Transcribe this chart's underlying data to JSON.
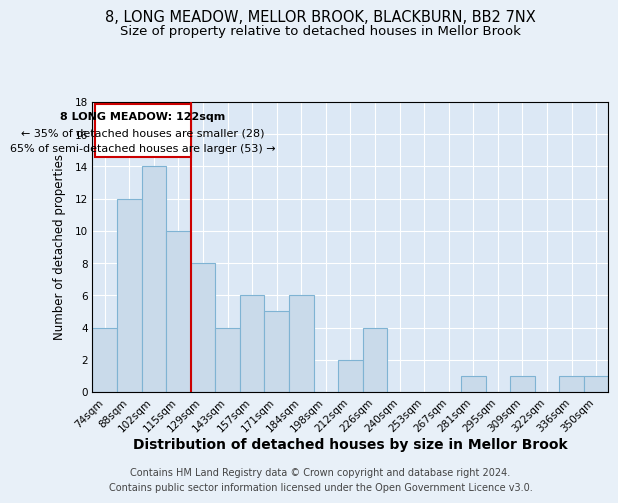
{
  "title": "8, LONG MEADOW, MELLOR BROOK, BLACKBURN, BB2 7NX",
  "subtitle": "Size of property relative to detached houses in Mellor Brook",
  "xlabel": "Distribution of detached houses by size in Mellor Brook",
  "ylabel": "Number of detached properties",
  "footer1": "Contains HM Land Registry data © Crown copyright and database right 2024.",
  "footer2": "Contains public sector information licensed under the Open Government Licence v3.0.",
  "categories": [
    "74sqm",
    "88sqm",
    "102sqm",
    "115sqm",
    "129sqm",
    "143sqm",
    "157sqm",
    "171sqm",
    "184sqm",
    "198sqm",
    "212sqm",
    "226sqm",
    "240sqm",
    "253sqm",
    "267sqm",
    "281sqm",
    "295sqm",
    "309sqm",
    "322sqm",
    "336sqm",
    "350sqm"
  ],
  "values": [
    4,
    12,
    14,
    10,
    8,
    4,
    6,
    5,
    6,
    0,
    2,
    4,
    0,
    0,
    0,
    1,
    0,
    1,
    0,
    1,
    1
  ],
  "bar_color": "#c9daea",
  "bar_edge_color": "#7fb3d3",
  "bar_edge_width": 0.8,
  "red_line_color": "#cc0000",
  "red_line_x": 3.5,
  "annotation_box_text_line1": "8 LONG MEADOW: 122sqm",
  "annotation_box_text_line2": "← 35% of detached houses are smaller (28)",
  "annotation_box_text_line3": "65% of semi-detached houses are larger (53) →",
  "ylim": [
    0,
    18
  ],
  "yticks": [
    0,
    2,
    4,
    6,
    8,
    10,
    12,
    14,
    16,
    18
  ],
  "background_color": "#e8f0f8",
  "plot_background": "#dce8f5",
  "grid_color": "#ffffff",
  "title_fontsize": 10.5,
  "subtitle_fontsize": 9.5,
  "xlabel_fontsize": 10,
  "ylabel_fontsize": 8.5,
  "tick_fontsize": 7.5,
  "footer_fontsize": 7,
  "annotation_fontsize": 8
}
